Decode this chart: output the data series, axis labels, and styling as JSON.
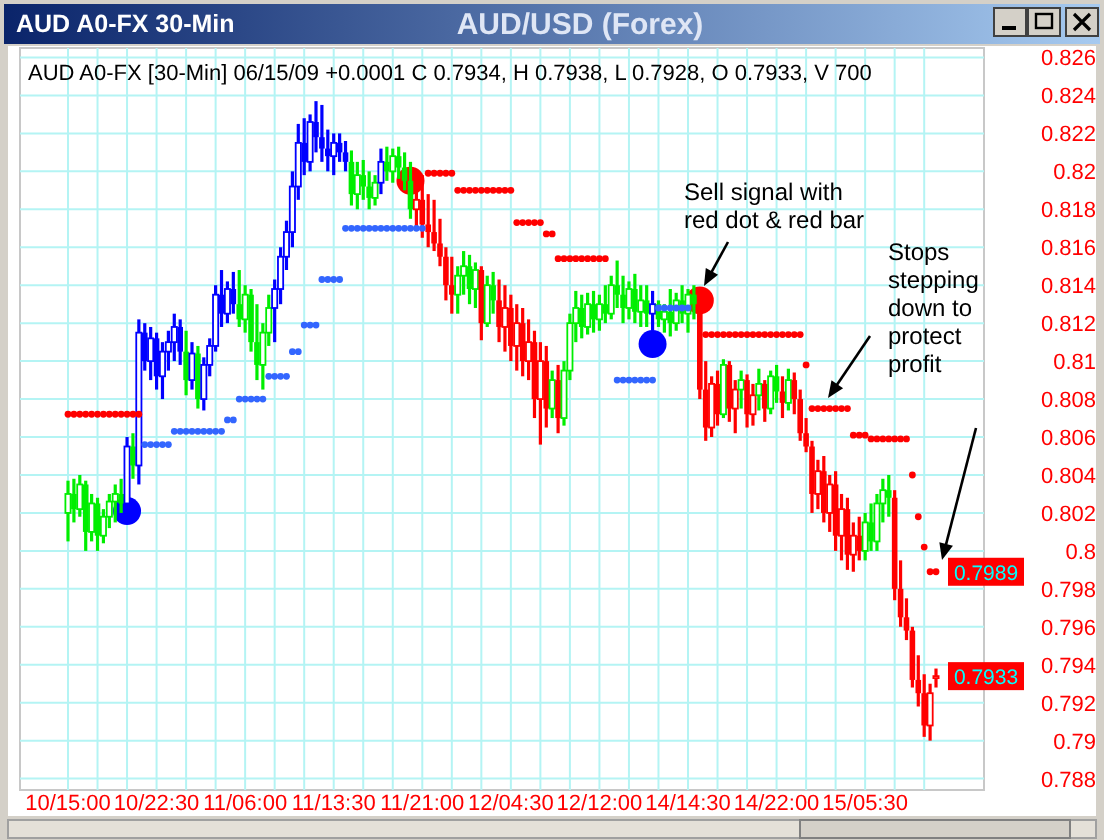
{
  "chart_data": {
    "type": "candlestick",
    "title": "AUD/USD (Forex)",
    "subtitle": "AUD A0-FX [30-Min] 06/15/09  +0.0001 C 0.7934, H 0.7938, L 0.7928, O 0.7933, V 700",
    "annotations": [
      "AUD A0-FX 30-Min",
      "Sell signal with red dot & red bar",
      "Stops stepping down to protect profit",
      "0.7989",
      "0.7933"
    ],
    "categories": [
      "10/15:00",
      null,
      null,
      null,
      null,
      null,
      null,
      null,
      null,
      null,
      null,
      null,
      null,
      null,
      null,
      "10/22:30",
      null,
      null,
      null,
      null,
      null,
      null,
      null,
      null,
      null,
      null,
      null,
      null,
      null,
      null,
      "11/06:00",
      null,
      null,
      null,
      null,
      null,
      null,
      null,
      null,
      null,
      null,
      null,
      null,
      null,
      null,
      "11/13:30",
      null,
      null,
      null,
      null,
      null,
      null,
      null,
      null,
      null,
      null,
      null,
      null,
      null,
      null,
      "11/21:00",
      null,
      null,
      null,
      null,
      null,
      null,
      null,
      null,
      null,
      null,
      null,
      null,
      null,
      null,
      "12/04:30",
      null,
      null,
      null,
      null,
      null,
      null,
      null,
      null,
      null,
      null,
      null,
      null,
      null,
      null,
      "12/12:00",
      null,
      null,
      null,
      null,
      null,
      null,
      null,
      null,
      null,
      null,
      null,
      null,
      null,
      null,
      "14/14:30",
      null,
      null,
      null,
      null,
      null,
      null,
      null,
      null,
      null,
      null,
      null,
      null,
      null,
      null,
      "14/22:00",
      null,
      null,
      null,
      null,
      null,
      null,
      null,
      null,
      null,
      null,
      null,
      null,
      null,
      null,
      "15/05:30",
      null,
      null,
      null,
      null,
      null,
      null,
      null,
      null,
      null,
      null,
      null,
      null
    ],
    "ylim": [
      0.7874,
      0.8265
    ],
    "yticks": [
      0.788,
      0.79,
      0.792,
      0.794,
      0.796,
      0.798,
      0.8,
      0.802,
      0.804,
      0.806,
      0.808,
      0.81,
      0.812,
      0.814,
      0.816,
      0.818,
      0.82,
      0.822,
      0.824,
      0.826
    ],
    "grid": true,
    "ohlc": [
      [
        0.802,
        0.8037,
        0.8005,
        0.803
      ],
      [
        0.803,
        0.8038,
        0.8015,
        0.8022
      ],
      [
        0.8022,
        0.804,
        0.8018,
        0.8035
      ],
      [
        0.8035,
        0.8037,
        0.8,
        0.801
      ],
      [
        0.801,
        0.803,
        0.8005,
        0.8025
      ],
      [
        0.8025,
        0.8028,
        0.8,
        0.8008
      ],
      [
        0.8008,
        0.8022,
        0.8004,
        0.8018
      ],
      [
        0.8018,
        0.803,
        0.8012,
        0.8026
      ],
      [
        0.8026,
        0.8035,
        0.8015,
        0.803
      ],
      [
        0.803,
        0.8038,
        0.802,
        0.8025
      ],
      [
        0.8025,
        0.806,
        0.802,
        0.8055
      ],
      [
        0.8055,
        0.8062,
        0.8038,
        0.8045
      ],
      [
        0.8045,
        0.8122,
        0.8035,
        0.8115
      ],
      [
        0.8115,
        0.812,
        0.8095,
        0.81
      ],
      [
        0.81,
        0.8118,
        0.809,
        0.8112
      ],
      [
        0.8112,
        0.8115,
        0.8085,
        0.8092
      ],
      [
        0.8092,
        0.811,
        0.808,
        0.8105
      ],
      [
        0.8105,
        0.8116,
        0.8095,
        0.811
      ],
      [
        0.811,
        0.8125,
        0.81,
        0.8118
      ],
      [
        0.8118,
        0.8122,
        0.8098,
        0.8105
      ],
      [
        0.8105,
        0.8116,
        0.8082,
        0.809
      ],
      [
        0.809,
        0.811,
        0.8085,
        0.8104
      ],
      [
        0.8104,
        0.8108,
        0.8075,
        0.808
      ],
      [
        0.808,
        0.8102,
        0.8074,
        0.8098
      ],
      [
        0.8098,
        0.8112,
        0.8092,
        0.8108
      ],
      [
        0.8108,
        0.814,
        0.8105,
        0.8135
      ],
      [
        0.8135,
        0.8148,
        0.8118,
        0.8125
      ],
      [
        0.8125,
        0.8142,
        0.812,
        0.8138
      ],
      [
        0.8138,
        0.8147,
        0.8125,
        0.813
      ],
      [
        0.813,
        0.8148,
        0.8118,
        0.8122
      ],
      [
        0.8122,
        0.814,
        0.8115,
        0.8135
      ],
      [
        0.8135,
        0.8138,
        0.8105,
        0.811
      ],
      [
        0.811,
        0.813,
        0.809,
        0.8098
      ],
      [
        0.8098,
        0.812,
        0.8085,
        0.8115
      ],
      [
        0.8115,
        0.8135,
        0.8108,
        0.8128
      ],
      [
        0.8128,
        0.8143,
        0.811,
        0.8138
      ],
      [
        0.8138,
        0.816,
        0.813,
        0.8155
      ],
      [
        0.8155,
        0.8174,
        0.8148,
        0.8168
      ],
      [
        0.8168,
        0.82,
        0.816,
        0.8192
      ],
      [
        0.8192,
        0.8225,
        0.8185,
        0.8215
      ],
      [
        0.8215,
        0.8228,
        0.8198,
        0.8205
      ],
      [
        0.8205,
        0.823,
        0.82,
        0.8226
      ],
      [
        0.8226,
        0.8237,
        0.821,
        0.8218
      ],
      [
        0.8218,
        0.8235,
        0.8205,
        0.8212
      ],
      [
        0.8212,
        0.8222,
        0.82,
        0.8208
      ],
      [
        0.8208,
        0.822,
        0.8198,
        0.8215
      ],
      [
        0.8215,
        0.822,
        0.8205,
        0.821
      ],
      [
        0.821,
        0.8216,
        0.82,
        0.8205
      ],
      [
        0.8205,
        0.8211,
        0.8182,
        0.8188
      ],
      [
        0.8188,
        0.8205,
        0.818,
        0.8198
      ],
      [
        0.8198,
        0.8206,
        0.8185,
        0.8192
      ],
      [
        0.8192,
        0.82,
        0.818,
        0.8186
      ],
      [
        0.8186,
        0.8198,
        0.8182,
        0.8194
      ],
      [
        0.8194,
        0.8212,
        0.8188,
        0.8205
      ],
      [
        0.8205,
        0.8213,
        0.8195,
        0.82
      ],
      [
        0.82,
        0.8212,
        0.8194,
        0.8208
      ],
      [
        0.8208,
        0.8213,
        0.8196,
        0.8202
      ],
      [
        0.8202,
        0.821,
        0.819,
        0.8195
      ],
      [
        0.8195,
        0.8205,
        0.8175,
        0.818
      ],
      [
        0.818,
        0.82,
        0.817,
        0.8185
      ],
      [
        0.8185,
        0.8198,
        0.8165,
        0.8172
      ],
      [
        0.8172,
        0.8188,
        0.816,
        0.8168
      ],
      [
        0.8168,
        0.8185,
        0.8158,
        0.8162
      ],
      [
        0.8162,
        0.8175,
        0.815,
        0.8155
      ],
      [
        0.8155,
        0.816,
        0.8132,
        0.814
      ],
      [
        0.814,
        0.8155,
        0.8125,
        0.8135
      ],
      [
        0.8135,
        0.815,
        0.8125,
        0.8145
      ],
      [
        0.8145,
        0.8158,
        0.8135,
        0.815
      ],
      [
        0.815,
        0.8156,
        0.813,
        0.8138
      ],
      [
        0.8138,
        0.8152,
        0.8128,
        0.8148
      ],
      [
        0.8148,
        0.815,
        0.8111,
        0.812
      ],
      [
        0.812,
        0.8145,
        0.8118,
        0.814
      ],
      [
        0.814,
        0.8147,
        0.8125,
        0.8132
      ],
      [
        0.8132,
        0.8143,
        0.811,
        0.8118
      ],
      [
        0.8118,
        0.814,
        0.8105,
        0.8128
      ],
      [
        0.8128,
        0.8135,
        0.81,
        0.8108
      ],
      [
        0.8108,
        0.813,
        0.8095,
        0.812
      ],
      [
        0.812,
        0.8128,
        0.8092,
        0.81
      ],
      [
        0.81,
        0.8122,
        0.809,
        0.811
      ],
      [
        0.811,
        0.8116,
        0.807,
        0.808
      ],
      [
        0.808,
        0.811,
        0.8056,
        0.81
      ],
      [
        0.81,
        0.8108,
        0.8065,
        0.8075
      ],
      [
        0.8075,
        0.8095,
        0.807,
        0.809
      ],
      [
        0.809,
        0.8098,
        0.8062,
        0.807
      ],
      [
        0.807,
        0.81,
        0.8066,
        0.8095
      ],
      [
        0.8095,
        0.8125,
        0.809,
        0.812
      ],
      [
        0.812,
        0.8137,
        0.811,
        0.8128
      ],
      [
        0.8128,
        0.8135,
        0.8112,
        0.8118
      ],
      [
        0.8118,
        0.8136,
        0.8114,
        0.813
      ],
      [
        0.813,
        0.8137,
        0.8115,
        0.8122
      ],
      [
        0.8122,
        0.8135,
        0.8116,
        0.813
      ],
      [
        0.813,
        0.814,
        0.812,
        0.8125
      ],
      [
        0.8125,
        0.8145,
        0.8122,
        0.814
      ],
      [
        0.814,
        0.8153,
        0.8128,
        0.8135
      ],
      [
        0.8135,
        0.8145,
        0.812,
        0.8128
      ],
      [
        0.8128,
        0.8142,
        0.8122,
        0.8138
      ],
      [
        0.8138,
        0.8146,
        0.812,
        0.8126
      ],
      [
        0.8126,
        0.814,
        0.8118,
        0.8132
      ],
      [
        0.8132,
        0.814,
        0.8118,
        0.8125
      ],
      [
        0.8125,
        0.8137,
        0.8116,
        0.813
      ],
      [
        0.813,
        0.8132,
        0.8118,
        0.8122
      ],
      [
        0.8122,
        0.813,
        0.8115,
        0.8126
      ],
      [
        0.8126,
        0.8138,
        0.8113,
        0.812
      ],
      [
        0.812,
        0.8136,
        0.8116,
        0.8132
      ],
      [
        0.8132,
        0.814,
        0.812,
        0.8125
      ],
      [
        0.8125,
        0.8138,
        0.8115,
        0.8135
      ],
      [
        0.8135,
        0.814,
        0.8122,
        0.813
      ],
      [
        0.813,
        0.8132,
        0.808,
        0.8085
      ],
      [
        0.8085,
        0.81,
        0.8058,
        0.8065
      ],
      [
        0.8065,
        0.8092,
        0.806,
        0.8088
      ],
      [
        0.8088,
        0.8095,
        0.8066,
        0.8072
      ],
      [
        0.8072,
        0.8101,
        0.807,
        0.8098
      ],
      [
        0.8098,
        0.81,
        0.8068,
        0.8075
      ],
      [
        0.8075,
        0.809,
        0.8062,
        0.8085
      ],
      [
        0.8085,
        0.8095,
        0.8075,
        0.809
      ],
      [
        0.809,
        0.8093,
        0.8065,
        0.8072
      ],
      [
        0.8072,
        0.8088,
        0.8066,
        0.8082
      ],
      [
        0.8082,
        0.8096,
        0.8074,
        0.8088
      ],
      [
        0.8088,
        0.809,
        0.8068,
        0.8075
      ],
      [
        0.8075,
        0.8095,
        0.8072,
        0.8092
      ],
      [
        0.8092,
        0.8098,
        0.8078,
        0.8084
      ],
      [
        0.8084,
        0.8092,
        0.807,
        0.8078
      ],
      [
        0.8078,
        0.8096,
        0.8074,
        0.809
      ],
      [
        0.809,
        0.8094,
        0.8072,
        0.808
      ],
      [
        0.808,
        0.8085,
        0.8058,
        0.8062
      ],
      [
        0.8062,
        0.807,
        0.8052,
        0.8055
      ],
      [
        0.8055,
        0.8058,
        0.802,
        0.803
      ],
      [
        0.803,
        0.8048,
        0.8022,
        0.8042
      ],
      [
        0.8042,
        0.805,
        0.8015,
        0.802
      ],
      [
        0.802,
        0.804,
        0.801,
        0.8035
      ],
      [
        0.8035,
        0.8042,
        0.8,
        0.8008
      ],
      [
        0.8008,
        0.803,
        0.7995,
        0.8022
      ],
      [
        0.8022,
        0.8028,
        0.799,
        0.7998
      ],
      [
        0.7998,
        0.8015,
        0.7989,
        0.8008
      ],
      [
        0.8008,
        0.8018,
        0.7995,
        0.8
      ],
      [
        0.8,
        0.802,
        0.7995,
        0.8015
      ],
      [
        0.8015,
        0.8025,
        0.8,
        0.8005
      ],
      [
        0.8005,
        0.803,
        0.8,
        0.8025
      ],
      [
        0.8025,
        0.8038,
        0.8015,
        0.8032
      ],
      [
        0.8032,
        0.804,
        0.8018,
        0.8028
      ],
      [
        0.8028,
        0.8032,
        0.7974,
        0.798
      ],
      [
        0.798,
        0.7995,
        0.796,
        0.7965
      ],
      [
        0.7965,
        0.7975,
        0.7953,
        0.7958
      ],
      [
        0.7958,
        0.796,
        0.7928,
        0.7932
      ],
      [
        0.7932,
        0.7945,
        0.7918,
        0.7925
      ],
      [
        0.7925,
        0.7935,
        0.7902,
        0.7908
      ],
      [
        0.7908,
        0.793,
        0.79,
        0.7925
      ],
      [
        0.7933,
        0.7938,
        0.7928,
        0.7934
      ]
    ],
    "colors": [
      "#00ee00",
      "#00ee00",
      "#00ee00",
      "#00ee00",
      "#00ee00",
      "#00ee00",
      "#00ee00",
      "#00ee00",
      "#00ee00",
      "#00ee00",
      "#0000ff",
      "#00ee00",
      "#0000ff",
      "#0000ff",
      "#0000ff",
      "#0000ff",
      "#0000ff",
      "#0000ff",
      "#0000ff",
      "#0000ff",
      "#00ee00",
      "#0000ff",
      "#00ee00",
      "#0000ff",
      "#0000ff",
      "#0000ff",
      "#0000ff",
      "#0000ff",
      "#0000ff",
      "#00ee00",
      "#00ee00",
      "#00ee00",
      "#00ee00",
      "#00ee00",
      "#00ee00",
      "#0000ff",
      "#0000ff",
      "#0000ff",
      "#0000ff",
      "#0000ff",
      "#0000ff",
      "#0000ff",
      "#0000ff",
      "#0000ff",
      "#0000ff",
      "#0000ff",
      "#0000ff",
      "#0000ff",
      "#00ee00",
      "#00ee00",
      "#00ee00",
      "#00ee00",
      "#00ee00",
      "#0000ff",
      "#00ee00",
      "#00ee00",
      "#00ee00",
      "#00ee00",
      "#00ee00",
      "#ff0000",
      "#ff0000",
      "#ff0000",
      "#ff0000",
      "#ff0000",
      "#ff0000",
      "#ff0000",
      "#00ee00",
      "#00ee00",
      "#00ee00",
      "#00ee00",
      "#ff0000",
      "#00ee00",
      "#00ee00",
      "#ff0000",
      "#ff0000",
      "#ff0000",
      "#ff0000",
      "#ff0000",
      "#ff0000",
      "#ff0000",
      "#ff0000",
      "#ff0000",
      "#00ee00",
      "#ff0000",
      "#00ee00",
      "#00ee00",
      "#00ee00",
      "#00ee00",
      "#00ee00",
      "#00ee00",
      "#00ee00",
      "#00ee00",
      "#00ee00",
      "#00ee00",
      "#00ee00",
      "#00ee00",
      "#00ee00",
      "#00ee00",
      "#00ee00",
      "#0000ff",
      "#00ee00",
      "#00ee00",
      "#00ee00",
      "#00ee00",
      "#00ee00",
      "#00ee00",
      "#00ee00",
      "#ff0000",
      "#ff0000",
      "#ff0000",
      "#ff0000",
      "#00ee00",
      "#ff0000",
      "#ff0000",
      "#00ee00",
      "#ff0000",
      "#ff0000",
      "#00ee00",
      "#ff0000",
      "#00ee00",
      "#00ee00",
      "#ff0000",
      "#00ee00",
      "#ff0000",
      "#ff0000",
      "#ff0000",
      "#ff0000",
      "#ff0000",
      "#ff0000",
      "#ff0000",
      "#ff0000",
      "#ff0000",
      "#ff0000",
      "#ff0000",
      "#ff0000",
      "#00ee00",
      "#00ee00",
      "#00ee00",
      "#00ee00",
      "#00ee00",
      "#ff0000",
      "#ff0000",
      "#ff0000",
      "#ff0000",
      "#ff0000",
      "#ff0000",
      "#ff0000",
      "#ff0000"
    ],
    "series": [
      {
        "type": "scatter",
        "color": "#ff0000",
        "marker": "circle",
        "values": [
          0.8072,
          0.8072,
          0.8072,
          0.8072,
          0.8072,
          0.8072,
          0.8072,
          0.8072,
          0.8072,
          0.8072,
          0.8072,
          0.8072,
          0.8072,
          null,
          null,
          null,
          null,
          null,
          null,
          null,
          null,
          null,
          null,
          null,
          null,
          null,
          null,
          null,
          null,
          null,
          null,
          null,
          null,
          null,
          null,
          null,
          null,
          null,
          null,
          null,
          null,
          null,
          null,
          null,
          null,
          null,
          null,
          null,
          null,
          null,
          null,
          null,
          null,
          null,
          null,
          null,
          null,
          null,
          null,
          null,
          null,
          0.8199,
          0.8199,
          0.8199,
          0.8199,
          0.8199,
          0.819,
          0.819,
          0.819,
          0.819,
          0.819,
          0.819,
          0.819,
          0.819,
          0.819,
          0.819,
          0.8173,
          0.8173,
          0.8173,
          0.8173,
          0.8173,
          0.8167,
          0.8167,
          0.8154,
          0.8154,
          0.8154,
          0.8154,
          0.8154,
          0.8154,
          0.8154,
          0.8154,
          0.8154,
          null,
          null,
          null,
          null,
          null,
          null,
          null,
          null,
          null,
          null,
          null,
          null,
          null,
          null,
          null,
          null,
          0.8114,
          0.8114,
          0.8114,
          0.8114,
          0.8114,
          0.8114,
          0.8114,
          0.8114,
          0.8114,
          0.8114,
          0.8114,
          0.8114,
          0.8114,
          0.8114,
          0.8114,
          0.8114,
          0.8114,
          0.8098,
          0.8075,
          0.8075,
          0.8075,
          0.8075,
          0.8075,
          0.8075,
          0.8075,
          0.8061,
          0.8061,
          0.8061,
          0.8059,
          0.8059,
          0.8059,
          0.8059,
          0.8059,
          0.8059,
          0.8059,
          0.804,
          0.8018,
          0.8002,
          0.7989,
          0.7989
        ]
      },
      {
        "type": "scatter",
        "color": "#3366ff",
        "marker": "circle",
        "values": [
          null,
          null,
          null,
          null,
          null,
          null,
          null,
          null,
          null,
          null,
          null,
          null,
          null,
          0.8056,
          0.8056,
          0.8056,
          0.8056,
          0.8056,
          0.8063,
          0.8063,
          0.8063,
          0.8063,
          0.8063,
          0.8063,
          0.8063,
          0.8063,
          0.8063,
          0.8069,
          0.8069,
          0.808,
          0.808,
          0.808,
          0.808,
          0.808,
          0.8092,
          0.8092,
          0.8092,
          0.8092,
          0.8105,
          0.8105,
          0.8119,
          0.8119,
          0.8119,
          0.8143,
          0.8143,
          0.8143,
          0.8143,
          0.817,
          0.817,
          0.817,
          0.817,
          0.817,
          0.817,
          0.817,
          0.817,
          0.817,
          0.817,
          0.817,
          0.817,
          0.817,
          0.817,
          null,
          null,
          null,
          null,
          null,
          null,
          null,
          null,
          null,
          null,
          null,
          null,
          null,
          null,
          null,
          null,
          null,
          null,
          null,
          null,
          null,
          null,
          null,
          null,
          null,
          null,
          null,
          null,
          null,
          null,
          null,
          null,
          0.809,
          0.809,
          0.809,
          0.809,
          0.809,
          0.809,
          0.809,
          0.8128,
          0.8128,
          0.8128,
          0.8128,
          0.8128,
          0.8128,
          null,
          null,
          null,
          null,
          null,
          null,
          null,
          null,
          null,
          null,
          null,
          null,
          null,
          null,
          null,
          null,
          null,
          null,
          null,
          null,
          null,
          null,
          null,
          null,
          null,
          null,
          null,
          null,
          null,
          null,
          null,
          null,
          null,
          null,
          null,
          null,
          null,
          null,
          null,
          null,
          null,
          null
        ]
      },
      {
        "type": "bubble",
        "color": "#0000ff",
        "values": [
          null,
          null,
          null,
          null,
          null,
          null,
          null,
          null,
          null,
          null,
          0.8021,
          null,
          null,
          null,
          null,
          null,
          null,
          null,
          null,
          null,
          null,
          null,
          null,
          null,
          null,
          null,
          null,
          null,
          null,
          null,
          null,
          null,
          null,
          null,
          null,
          null,
          null,
          null,
          null,
          null,
          null,
          null,
          null,
          null,
          null,
          null,
          null,
          null,
          null,
          null,
          null,
          null,
          null,
          null,
          null,
          null,
          null,
          null,
          null,
          null,
          null,
          null,
          null,
          null,
          null,
          null,
          null,
          null,
          null,
          null,
          null,
          null,
          null,
          null,
          null,
          null,
          null,
          null,
          null,
          null,
          null,
          null,
          null,
          null,
          null,
          null,
          null,
          null,
          null,
          null,
          null,
          null,
          null,
          null,
          null,
          null,
          null,
          null,
          null,
          0.8109,
          null,
          null,
          null,
          null,
          null,
          null,
          null,
          null,
          null,
          null,
          null,
          null,
          null,
          null,
          null,
          null,
          null,
          null,
          null,
          null,
          null,
          null,
          null,
          null,
          null,
          null,
          null,
          null,
          null,
          null,
          null,
          null,
          null,
          null,
          null,
          null,
          null,
          null,
          null,
          null,
          null,
          null,
          null,
          null,
          null,
          null,
          null,
          null
        ],
        "sizes": [
          null,
          null,
          null,
          null,
          null,
          null,
          null,
          null,
          null,
          null,
          1,
          null,
          null,
          null,
          null,
          null,
          null,
          null,
          null,
          null,
          null,
          null,
          null,
          null,
          null,
          null,
          null,
          null,
          null,
          null,
          null,
          null,
          null,
          null,
          null,
          null,
          null,
          null,
          null,
          null,
          null,
          null,
          null,
          null,
          null,
          null,
          null,
          null,
          null,
          null,
          null,
          null,
          null,
          null,
          null,
          null,
          null,
          null,
          null,
          null,
          null,
          null,
          null,
          null,
          null,
          null,
          null,
          null,
          null,
          null,
          null,
          null,
          null,
          null,
          null,
          null,
          null,
          null,
          null,
          null,
          null,
          null,
          null,
          null,
          null,
          null,
          null,
          null,
          null,
          null,
          null,
          null,
          null,
          null,
          null,
          null,
          null,
          null,
          null,
          1,
          null,
          null,
          null,
          null,
          null,
          null,
          null,
          null,
          null,
          null,
          null,
          null,
          null,
          null,
          null,
          null,
          null,
          null,
          null,
          null,
          null,
          null,
          null,
          null,
          null,
          null,
          null,
          null,
          null,
          null,
          null,
          null,
          null,
          null,
          null,
          null,
          null,
          null,
          null,
          null,
          null,
          null,
          null,
          null,
          null,
          null,
          null,
          null
        ]
      },
      {
        "type": "bubble",
        "color": "#ff0000",
        "values": [
          null,
          null,
          null,
          null,
          null,
          null,
          null,
          null,
          null,
          null,
          null,
          null,
          null,
          null,
          null,
          null,
          null,
          null,
          null,
          null,
          null,
          null,
          null,
          null,
          null,
          null,
          null,
          null,
          null,
          null,
          null,
          null,
          null,
          null,
          null,
          null,
          null,
          null,
          null,
          null,
          null,
          null,
          null,
          null,
          null,
          null,
          null,
          null,
          null,
          null,
          null,
          null,
          null,
          null,
          null,
          null,
          null,
          null,
          0.8195,
          null,
          null,
          null,
          null,
          null,
          null,
          null,
          null,
          null,
          null,
          null,
          null,
          null,
          null,
          null,
          null,
          null,
          null,
          null,
          null,
          null,
          null,
          null,
          null,
          null,
          null,
          null,
          null,
          null,
          null,
          null,
          null,
          null,
          null,
          null,
          null,
          null,
          null,
          null,
          null,
          null,
          null,
          null,
          null,
          null,
          null,
          null,
          null,
          0.8132,
          null,
          null,
          null,
          null,
          null,
          null,
          null,
          null,
          null,
          null,
          null,
          null,
          null,
          null,
          null,
          null,
          null,
          null,
          null,
          null,
          null,
          null,
          null,
          null,
          null,
          null,
          null,
          null,
          null,
          null,
          null,
          null,
          null,
          null,
          null,
          null,
          null,
          null,
          null,
          null
        ],
        "sizes": [
          null,
          null,
          null,
          null,
          null,
          null,
          null,
          null,
          null,
          null,
          null,
          null,
          null,
          null,
          null,
          null,
          null,
          null,
          null,
          null,
          null,
          null,
          null,
          null,
          null,
          null,
          null,
          null,
          null,
          null,
          null,
          null,
          null,
          null,
          null,
          null,
          null,
          null,
          null,
          null,
          null,
          null,
          null,
          null,
          null,
          null,
          null,
          null,
          null,
          null,
          null,
          null,
          null,
          null,
          null,
          null,
          null,
          null,
          1,
          null,
          null,
          null,
          null,
          null,
          null,
          null,
          null,
          null,
          null,
          null,
          null,
          null,
          null,
          null,
          null,
          null,
          null,
          null,
          null,
          null,
          null,
          null,
          null,
          null,
          null,
          null,
          null,
          null,
          null,
          null,
          null,
          null,
          null,
          null,
          null,
          null,
          null,
          null,
          null,
          null,
          null,
          null,
          null,
          null,
          null,
          null,
          null,
          1,
          null,
          null,
          null,
          null,
          null,
          null,
          null,
          null,
          null,
          null,
          null,
          null,
          null,
          null,
          null,
          null,
          null,
          null,
          null,
          null,
          null,
          null,
          null,
          null,
          null,
          null,
          null,
          null,
          null,
          null,
          null,
          null,
          null,
          null,
          null,
          null,
          null,
          null,
          null,
          null
        ]
      }
    ]
  }
}
